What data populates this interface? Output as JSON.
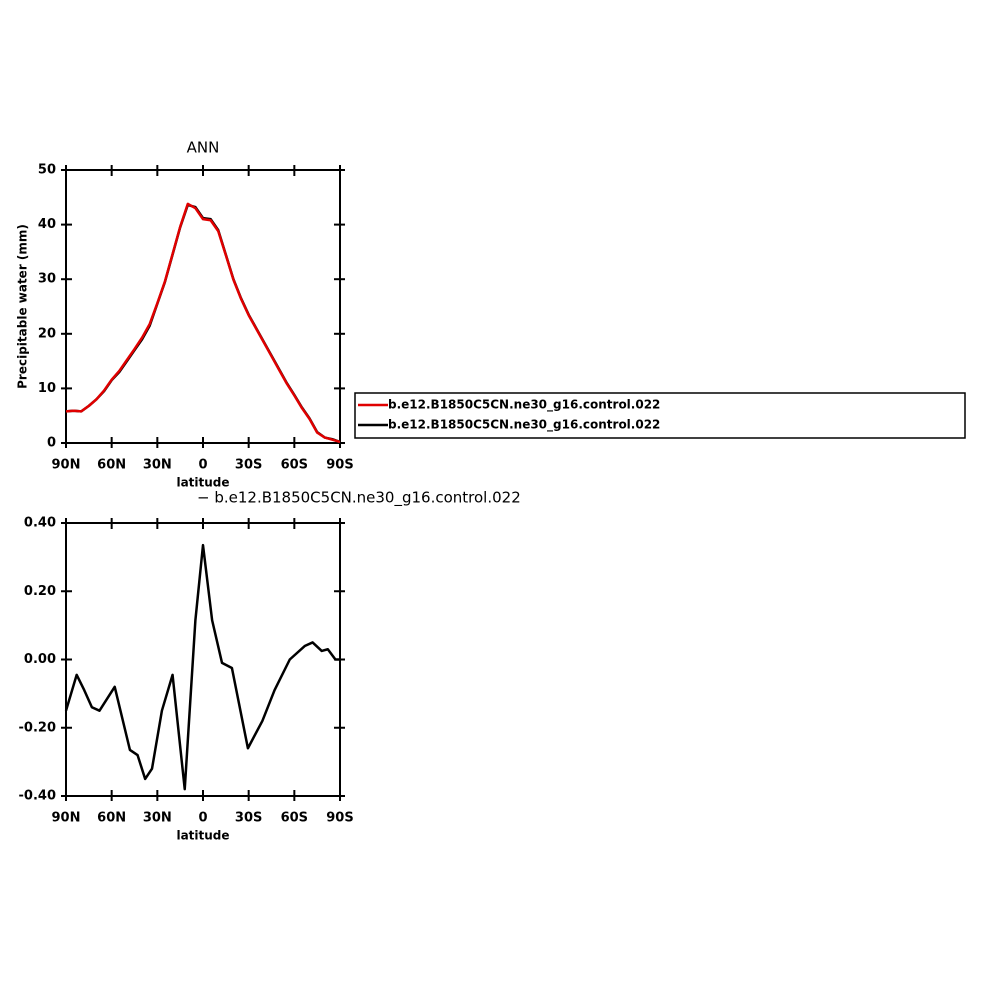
{
  "chart_data": [
    {
      "type": "line",
      "title": "ANN",
      "x_label": "latitude",
      "y_label": "Precipitable water (mm)",
      "x": [
        90,
        85,
        80,
        75,
        70,
        65,
        60,
        55,
        50,
        45,
        40,
        35,
        30,
        25,
        20,
        15,
        10,
        5,
        0,
        -5,
        -10,
        -15,
        -20,
        -25,
        -30,
        -35,
        -40,
        -45,
        -50,
        -55,
        -60,
        -65,
        -70,
        -75,
        -80,
        -85,
        -90
      ],
      "series": [
        {
          "name": "b.e12.B1850C5CN.ne30_g16.control.022",
          "color": "#000000",
          "values": [
            5.8,
            5.9,
            5.8,
            6.8,
            8.0,
            9.5,
            11.5,
            13.0,
            15.0,
            17.0,
            19.0,
            21.5,
            25.5,
            29.5,
            34.5,
            39.5,
            43.6,
            43.2,
            41.2,
            41.0,
            39.0,
            34.5,
            30.0,
            26.5,
            23.5,
            21.0,
            18.5,
            16.0,
            13.5,
            11.0,
            8.8,
            6.5,
            4.5,
            2.0,
            1.0,
            0.7,
            0.2
          ]
        },
        {
          "name": "b.e12.B1850C5CN.ne30_g16.control.022",
          "color": "#e00000",
          "values": [
            5.8,
            5.9,
            5.8,
            6.8,
            8.0,
            9.6,
            11.6,
            13.2,
            15.2,
            17.2,
            19.3,
            21.8,
            25.6,
            29.6,
            34.6,
            39.6,
            43.8,
            43.0,
            41.0,
            40.8,
            38.8,
            34.4,
            29.9,
            26.4,
            23.4,
            20.9,
            18.4,
            15.9,
            13.4,
            10.9,
            8.7,
            6.4,
            4.4,
            1.9,
            1.0,
            0.6,
            0.2
          ]
        }
      ],
      "xlim": [
        90,
        -90
      ],
      "xticks": [
        {
          "value": 90,
          "label": "90N"
        },
        {
          "value": 60,
          "label": "60N"
        },
        {
          "value": 30,
          "label": "30N"
        },
        0,
        {
          "value": -30,
          "label": "30S"
        },
        {
          "value": -60,
          "label": "60S"
        },
        {
          "value": -90,
          "label": "90S"
        }
      ],
      "ylim": [
        0,
        50
      ],
      "yticks": [
        0,
        10,
        20,
        30,
        40,
        50
      ],
      "legend": "right"
    },
    {
      "type": "line",
      "title": "− b.e12.B1850C5CN.ne30_g16.control.022",
      "x_label": "latitude",
      "x": [
        90,
        83,
        78,
        73,
        68,
        58,
        48,
        43,
        38,
        33.5,
        27,
        20,
        12,
        5,
        0,
        -6,
        -12.5,
        -19,
        -29.5,
        -39,
        -47,
        -57,
        -67,
        -72,
        -78,
        -82,
        -87,
        -90
      ],
      "series": [
        {
          "color": "#000000",
          "values": [
            -0.15,
            -0.045,
            -0.09,
            -0.14,
            -0.15,
            -0.08,
            -0.265,
            -0.28,
            -0.35,
            -0.32,
            -0.15,
            -0.045,
            -0.38,
            0.115,
            0.335,
            0.115,
            -0.01,
            -0.025,
            -0.26,
            -0.18,
            -0.09,
            0.0,
            0.04,
            0.05,
            0.025,
            0.03,
            0.0,
            0.0
          ]
        }
      ],
      "xlim": [
        90,
        -90
      ],
      "xticks": [
        {
          "value": 90,
          "label": "90N"
        },
        {
          "value": 60,
          "label": "60N"
        },
        {
          "value": 30,
          "label": "30N"
        },
        0,
        {
          "value": -30,
          "label": "30S"
        },
        {
          "value": -60,
          "label": "60S"
        },
        {
          "value": -90,
          "label": "90S"
        }
      ],
      "ylim": [
        -0.4,
        0.4
      ],
      "yticks": [
        {
          "value": -0.4,
          "label": "-0.40"
        },
        {
          "value": -0.2,
          "label": "-0.20"
        },
        {
          "value": 0,
          "label": "0.00"
        },
        {
          "value": 0.2,
          "label": "0.20"
        },
        {
          "value": 0.4,
          "label": "0.40"
        }
      ]
    }
  ]
}
